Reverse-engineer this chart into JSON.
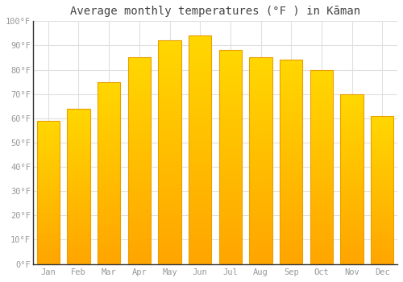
{
  "title": "Average monthly temperatures (°F ) in Kāman",
  "months": [
    "Jan",
    "Feb",
    "Mar",
    "Apr",
    "May",
    "Jun",
    "Jul",
    "Aug",
    "Sep",
    "Oct",
    "Nov",
    "Dec"
  ],
  "values": [
    59,
    64,
    75,
    85,
    92,
    94,
    88,
    85,
    84,
    80,
    70,
    61
  ],
  "bar_color_bottom": "#FFA500",
  "bar_color_top": "#FFD700",
  "bar_edge_color": "#E8A000",
  "ylim": [
    0,
    100
  ],
  "yticks": [
    0,
    10,
    20,
    30,
    40,
    50,
    60,
    70,
    80,
    90,
    100
  ],
  "ytick_labels": [
    "0°F",
    "10°F",
    "20°F",
    "30°F",
    "40°F",
    "50°F",
    "60°F",
    "70°F",
    "80°F",
    "90°F",
    "100°F"
  ],
  "background_color": "#ffffff",
  "grid_color": "#e0e0e0",
  "title_fontsize": 10,
  "tick_fontsize": 7.5,
  "font_family": "monospace",
  "tick_color": "#999999",
  "spine_color": "#333333"
}
